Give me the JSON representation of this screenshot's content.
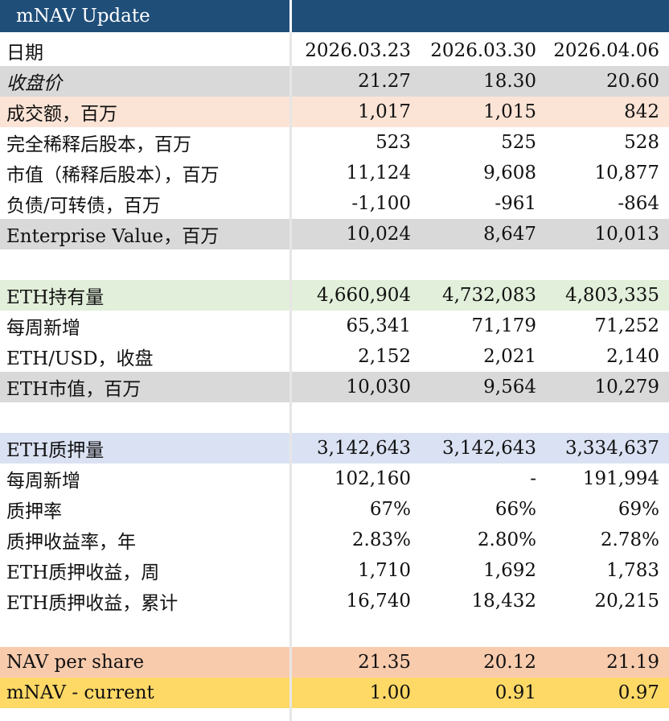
{
  "title": "mNAV Update",
  "dates_label": "日期",
  "dates": [
    "2026.03.23",
    "2026.03.30",
    "2026.04.06"
  ],
  "rows": {
    "close": {
      "label": "收盘价",
      "values": [
        "21.27",
        "18.30",
        "20.60"
      ]
    },
    "turnover": {
      "label": "成交额，百万",
      "values": [
        "1,017",
        "1,015",
        "842"
      ]
    },
    "diluted_shares": {
      "label": "完全稀释后股本，百万",
      "values": [
        "523",
        "525",
        "528"
      ]
    },
    "market_cap": {
      "label": "市值（稀释后股本），百万",
      "values": [
        "11,124",
        "9,608",
        "10,877"
      ]
    },
    "debt": {
      "label": "负债/可转债，百万",
      "values": [
        "-1,100",
        "-961",
        "-864"
      ]
    },
    "ev": {
      "label": "Enterprise Value，百万",
      "values": [
        "10,024",
        "8,647",
        "10,013"
      ]
    },
    "eth_holdings": {
      "label": "ETH持有量",
      "values": [
        "4,660,904",
        "4,732,083",
        "4,803,335"
      ]
    },
    "weekly_add": {
      "label": "每周新增",
      "values": [
        "65,341",
        "71,179",
        "71,252"
      ]
    },
    "eth_usd": {
      "label": "ETH/USD，收盘",
      "values": [
        "2,152",
        "2,021",
        "2,140"
      ]
    },
    "eth_mv": {
      "label": "ETH市值，百万",
      "values": [
        "10,030",
        "9,564",
        "10,279"
      ]
    },
    "eth_staked": {
      "label": "ETH质押量",
      "values": [
        "3,142,643",
        "3,142,643",
        "3,334,637"
      ]
    },
    "staked_weekly_add": {
      "label": "每周新增",
      "values": [
        "102,160",
        "-",
        "191,994"
      ]
    },
    "staking_ratio": {
      "label": "质押率",
      "values": [
        "67%",
        "66%",
        "69%"
      ]
    },
    "staking_yield": {
      "label": "质押收益率，年",
      "values": [
        "2.83%",
        "2.80%",
        "2.78%"
      ]
    },
    "staking_income_week": {
      "label": "ETH质押收益，周",
      "values": [
        "1,710",
        "1,692",
        "1,783"
      ]
    },
    "staking_income_cum": {
      "label": "ETH质押收益，累计",
      "values": [
        "16,740",
        "18,432",
        "20,215"
      ]
    },
    "nav_per_share": {
      "label": "NAV per share",
      "values": [
        "21.35",
        "20.12",
        "21.19"
      ]
    },
    "mnav_current": {
      "label": "mNAV - current",
      "values": [
        "1.00",
        "0.91",
        "0.97"
      ]
    }
  },
  "colors": {
    "header": "#1f4e79",
    "gray": "#d9d9d9",
    "peach": "#fbe3d5",
    "green": "#e2efda",
    "blue": "#dae1f3",
    "salmon": "#f8cbad",
    "yellow": "#ffd966"
  }
}
